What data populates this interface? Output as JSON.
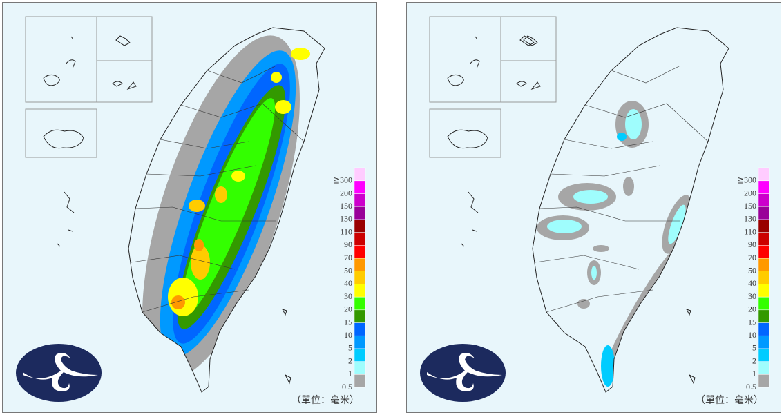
{
  "panels": [
    {
      "legend_labels": [
        "0.5",
        "1",
        "2",
        "5",
        "10",
        "15",
        "20",
        "30",
        "40",
        "50",
        "70",
        "90",
        "110",
        "130",
        "150",
        "200",
        "≧300"
      ],
      "unit": "（單位：毫米）"
    },
    {
      "legend_labels": [
        "0.5",
        "1",
        "2",
        "5",
        "10",
        "15",
        "20",
        "30",
        "40",
        "50",
        "70",
        "90",
        "110",
        "130",
        "150",
        "200",
        "≧300"
      ],
      "unit": "（單位：毫米）"
    }
  ],
  "legend_colors": [
    "#a6a6a6",
    "#9ffdfd",
    "#00ccff",
    "#0099ff",
    "#0066ff",
    "#339900",
    "#33ff00",
    "#ffff00",
    "#ffcc00",
    "#ff9900",
    "#ff0000",
    "#cc0000",
    "#990000",
    "#990099",
    "#cc00cc",
    "#ff00ff",
    "#ffccff"
  ]
}
